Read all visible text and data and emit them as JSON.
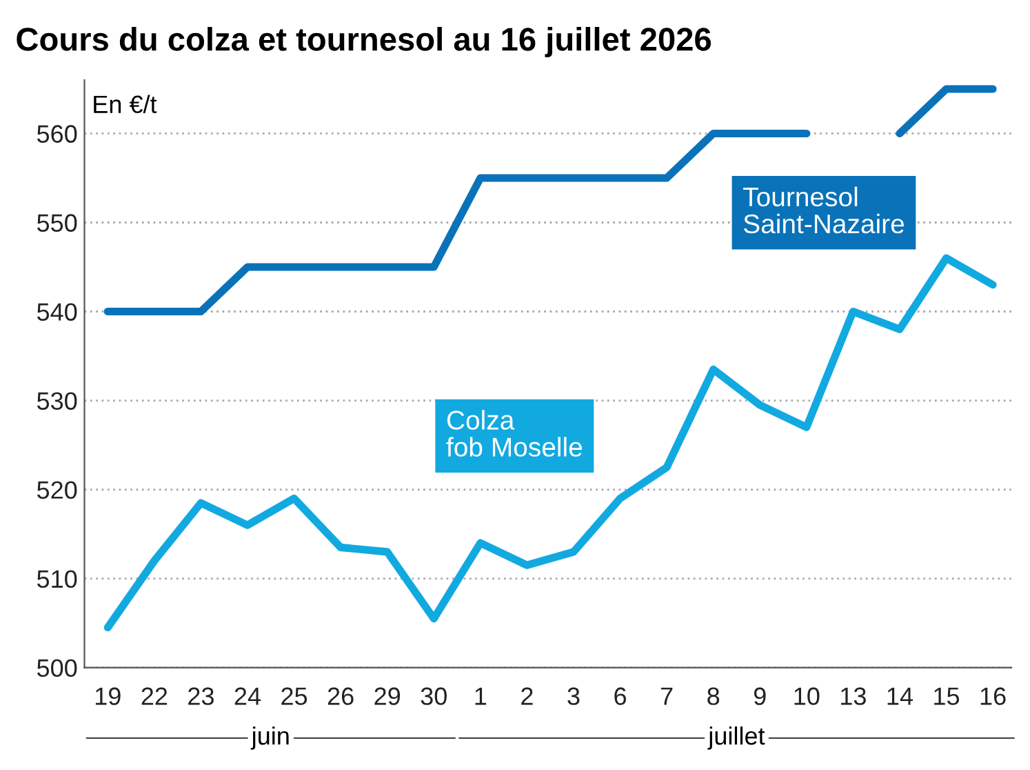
{
  "chart_data": {
    "type": "line",
    "title": "Cours du colza et tournesol au 16 juillet 2026",
    "ylabel": "En €/t",
    "categories": [
      "19",
      "22",
      "23",
      "24",
      "25",
      "26",
      "29",
      "30",
      "1",
      "2",
      "3",
      "6",
      "7",
      "8",
      "9",
      "10",
      "13",
      "14",
      "15",
      "16"
    ],
    "series": [
      {
        "name": "Tournesol\nSaint-Nazaire",
        "color": "#0a72b8",
        "values": [
          540,
          540,
          540,
          545,
          545,
          545,
          545,
          545,
          555,
          555,
          555,
          555,
          555,
          560,
          560,
          560,
          null,
          560,
          565,
          565
        ]
      },
      {
        "name": "Colza\nfob Moselle",
        "color": "#12a9e1",
        "values": [
          504.5,
          512,
          518.5,
          516,
          519,
          513.5,
          513,
          505.5,
          514,
          511.5,
          513,
          519,
          522.5,
          533.5,
          529.5,
          527,
          540,
          538,
          546,
          543
        ]
      }
    ],
    "annotations": [
      "juin",
      "juillet"
    ],
    "ylim": [
      500,
      566
    ],
    "yticks": [
      500,
      510,
      520,
      530,
      540,
      550,
      560
    ],
    "grid": "y",
    "line_style": "solid",
    "marker": "none",
    "legend": false
  }
}
